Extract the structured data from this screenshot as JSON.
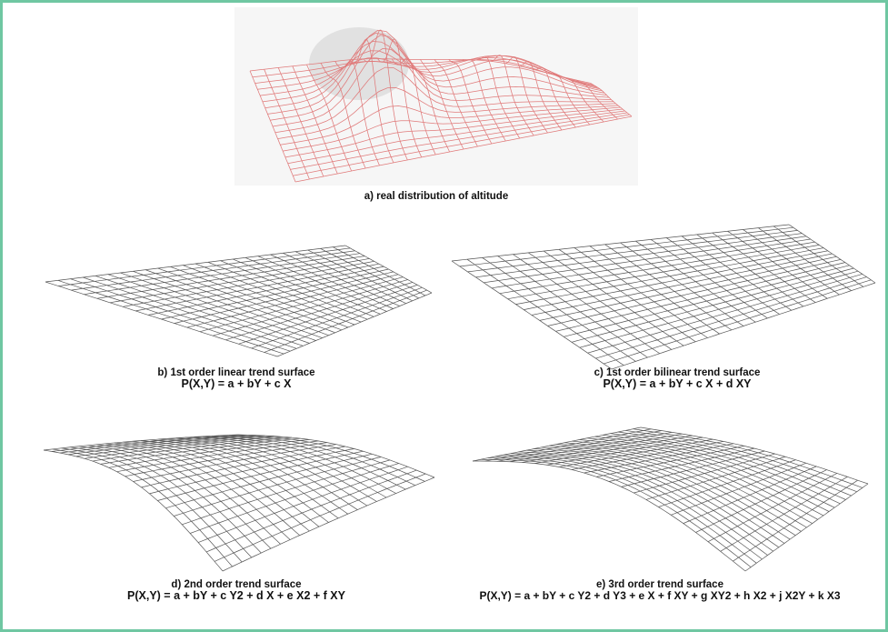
{
  "frame": {
    "border_color": "#6fc7a2"
  },
  "panels": [
    {
      "id": "a",
      "caption": "a) real distribution of altitude",
      "equation": "",
      "mesh_color": "#e07a7a"
    },
    {
      "id": "b",
      "caption": "b) 1st order linear trend surface",
      "equation": "P(X,Y) = a + bY + c X",
      "mesh_color": "#555555"
    },
    {
      "id": "c",
      "caption": "c) 1st order bilinear trend surface",
      "equation": "P(X,Y) = a + bY + c X + d XY",
      "mesh_color": "#555555"
    },
    {
      "id": "d",
      "caption": "d) 2nd order trend surface",
      "equation": "P(X,Y) = a + bY + c Y2 + d X + e X2 + f XY",
      "mesh_color": "#555555"
    },
    {
      "id": "e",
      "caption": "e) 3rd order trend surface",
      "equation": "P(X,Y) = a + bY + c Y2 + d Y3 + e X + f XY + g XY2 + h X2 + j X2Y + k X3",
      "mesh_color": "#555555"
    }
  ]
}
